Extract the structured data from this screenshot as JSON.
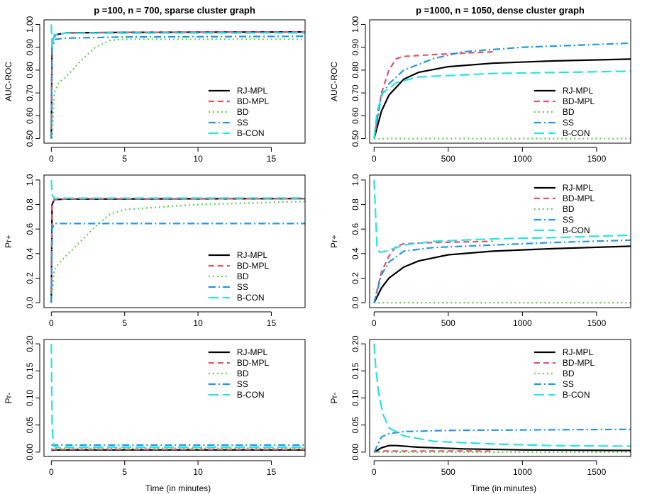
{
  "xlabel": "Time (in minutes)",
  "series_styles": [
    {
      "name": "RJ-MPL",
      "color": "#000000",
      "dash": "none",
      "width": 2.2
    },
    {
      "name": "BD-MPL",
      "color": "#df536b",
      "dash": "8,5",
      "width": 2.2
    },
    {
      "name": "BD",
      "color": "#61d04f",
      "dash": "2,4",
      "width": 2.2
    },
    {
      "name": "SS",
      "color": "#2297e6",
      "dash": "10,4,2,4",
      "width": 2.2
    },
    {
      "name": "B-CON",
      "color": "#28e2e5",
      "dash": "14,6",
      "width": 2.2
    }
  ],
  "chart_data": [
    {
      "type": "line",
      "title": "p =100, n = 700, sparse cluster graph",
      "ylabel": "AUC-ROC",
      "xlim": [
        -0.5,
        17.3
      ],
      "ylim": [
        0.5,
        1.0
      ],
      "xticks": [
        0,
        5,
        10,
        15
      ],
      "yticks": [
        0.5,
        0.6,
        0.7,
        0.8,
        0.9,
        1.0
      ],
      "legend_position": "bottom-right",
      "series": [
        {
          "name": "RJ-MPL",
          "x": [
            0,
            0.05,
            0.3,
            1,
            5,
            17.3
          ],
          "y": [
            0.5,
            0.93,
            0.955,
            0.963,
            0.965,
            0.967
          ]
        },
        {
          "name": "BD-MPL",
          "x": [
            0,
            0.05,
            0.3,
            1,
            5,
            17.3
          ],
          "y": [
            0.5,
            0.92,
            0.955,
            0.962,
            0.965,
            0.967
          ]
        },
        {
          "name": "BD",
          "x": [
            0.05,
            0.2,
            0.5,
            1,
            2,
            3,
            4,
            5,
            17.3
          ],
          "y": [
            0.5,
            0.7,
            0.745,
            0.77,
            0.84,
            0.9,
            0.93,
            0.935,
            0.935
          ]
        },
        {
          "name": "SS",
          "x": [
            0,
            0.05,
            0.3,
            1,
            5,
            17.3
          ],
          "y": [
            0.5,
            0.9,
            0.935,
            0.94,
            0.945,
            0.948
          ]
        },
        {
          "name": "B-CON",
          "x": [
            0,
            0.05,
            0.2,
            1,
            17.3
          ],
          "y": [
            1.0,
            0.9,
            0.955,
            0.962,
            0.963
          ]
        }
      ]
    },
    {
      "type": "line",
      "title": "p =1000, n = 1050, dense cluster graph",
      "ylabel": "AUC-ROC",
      "xlim": [
        -30,
        1730
      ],
      "ylim": [
        0.5,
        1.0
      ],
      "xticks": [
        0,
        500,
        1000,
        1500
      ],
      "yticks": [
        0.5,
        0.6,
        0.7,
        0.8,
        0.9,
        1.0
      ],
      "legend_position": "bottom-right",
      "series": [
        {
          "name": "RJ-MPL",
          "x": [
            0,
            50,
            100,
            200,
            300,
            500,
            800,
            1200,
            1730
          ],
          "y": [
            0.5,
            0.62,
            0.69,
            0.76,
            0.79,
            0.815,
            0.83,
            0.84,
            0.848
          ]
        },
        {
          "name": "BD-MPL",
          "x": [
            0,
            50,
            100,
            150,
            200,
            400,
            800
          ],
          "y": [
            0.5,
            0.7,
            0.8,
            0.85,
            0.86,
            0.868,
            0.88
          ]
        },
        {
          "name": "BD",
          "x": [
            0,
            1730
          ],
          "y": [
            0.5,
            0.5
          ]
        },
        {
          "name": "SS",
          "x": [
            0,
            50,
            100,
            200,
            400,
            600,
            1000,
            1730
          ],
          "y": [
            0.5,
            0.69,
            0.74,
            0.8,
            0.85,
            0.88,
            0.9,
            0.918
          ]
        },
        {
          "name": "B-CON",
          "x": [
            0,
            20,
            60,
            150,
            300,
            800,
            1730
          ],
          "y": [
            0.5,
            0.62,
            0.7,
            0.745,
            0.77,
            0.785,
            0.795
          ]
        }
      ]
    },
    {
      "type": "line",
      "title": "",
      "ylabel": "Pr+",
      "xlim": [
        -0.5,
        17.3
      ],
      "ylim": [
        0,
        1.0
      ],
      "xticks": [
        0,
        5,
        10,
        15
      ],
      "yticks": [
        0.0,
        0.2,
        0.4,
        0.6,
        0.8,
        1.0
      ],
      "legend_position": "bottom-right",
      "series": [
        {
          "name": "RJ-MPL",
          "x": [
            0,
            0.05,
            0.2,
            1,
            17.3
          ],
          "y": [
            0.0,
            0.8,
            0.84,
            0.845,
            0.848
          ]
        },
        {
          "name": "BD-MPL",
          "x": [
            0,
            0.05,
            0.2,
            1,
            17.3
          ],
          "y": [
            0.0,
            0.78,
            0.84,
            0.845,
            0.848
          ]
        },
        {
          "name": "BD",
          "x": [
            0,
            0.2,
            0.5,
            1,
            2,
            3,
            4,
            5,
            10,
            17.3
          ],
          "y": [
            0.0,
            0.27,
            0.32,
            0.38,
            0.5,
            0.62,
            0.72,
            0.76,
            0.8,
            0.825
          ]
        },
        {
          "name": "SS",
          "x": [
            0,
            0.05,
            0.2,
            17.3
          ],
          "y": [
            0.0,
            0.6,
            0.645,
            0.645
          ]
        },
        {
          "name": "B-CON",
          "x": [
            0,
            0.05,
            0.2,
            1,
            17.3
          ],
          "y": [
            1.0,
            0.88,
            0.85,
            0.852,
            0.853
          ]
        }
      ]
    },
    {
      "type": "line",
      "title": "",
      "ylabel": "Pr+",
      "xlim": [
        -30,
        1730
      ],
      "ylim": [
        0,
        1.0
      ],
      "xticks": [
        0,
        500,
        1000,
        1500
      ],
      "yticks": [
        0.0,
        0.2,
        0.4,
        0.6,
        0.8,
        1.0
      ],
      "legend_position": "top-right",
      "series": [
        {
          "name": "RJ-MPL",
          "x": [
            0,
            50,
            100,
            200,
            300,
            500,
            800,
            1200,
            1730
          ],
          "y": [
            0.0,
            0.12,
            0.2,
            0.29,
            0.34,
            0.39,
            0.42,
            0.44,
            0.46
          ]
        },
        {
          "name": "BD-MPL",
          "x": [
            0,
            50,
            100,
            150,
            200,
            400,
            800
          ],
          "y": [
            0.0,
            0.25,
            0.38,
            0.46,
            0.48,
            0.49,
            0.5
          ]
        },
        {
          "name": "BD",
          "x": [
            0,
            1730
          ],
          "y": [
            0.0,
            0.0
          ]
        },
        {
          "name": "SS",
          "x": [
            0,
            50,
            100,
            200,
            400,
            800,
            1200,
            1730
          ],
          "y": [
            0.0,
            0.23,
            0.33,
            0.42,
            0.45,
            0.47,
            0.49,
            0.51
          ]
        },
        {
          "name": "B-CON",
          "x": [
            0,
            20,
            40,
            80,
            200,
            400,
            800,
            1200,
            1730
          ],
          "y": [
            1.0,
            0.45,
            0.41,
            0.42,
            0.47,
            0.5,
            0.52,
            0.53,
            0.55
          ]
        }
      ]
    },
    {
      "type": "line",
      "title": "",
      "ylabel": "Pr-",
      "xlim": [
        -0.5,
        17.3
      ],
      "ylim": [
        0,
        0.2
      ],
      "xticks": [
        0,
        5,
        10,
        15
      ],
      "yticks": [
        0.0,
        0.05,
        0.1,
        0.15,
        0.2
      ],
      "legend_position": "top-right",
      "series": [
        {
          "name": "RJ-MPL",
          "x": [
            0,
            0.2,
            17.3
          ],
          "y": [
            0.003,
            0.004,
            0.004
          ]
        },
        {
          "name": "BD-MPL",
          "x": [
            0,
            0.2,
            17.3
          ],
          "y": [
            0.004,
            0.005,
            0.005
          ]
        },
        {
          "name": "BD",
          "x": [
            0,
            0.2,
            17.3
          ],
          "y": [
            0.006,
            0.007,
            0.007
          ]
        },
        {
          "name": "SS",
          "x": [
            0,
            0.1,
            17.3
          ],
          "y": [
            0.013,
            0.013,
            0.013
          ]
        },
        {
          "name": "B-CON",
          "x": [
            0,
            0.05,
            0.15,
            0.3,
            17.3
          ],
          "y": [
            0.2,
            0.05,
            0.012,
            0.009,
            0.009
          ]
        }
      ]
    },
    {
      "type": "line",
      "title": "",
      "ylabel": "Pr-",
      "xlim": [
        -30,
        1730
      ],
      "ylim": [
        0,
        0.2
      ],
      "xticks": [
        0,
        500,
        1000,
        1500
      ],
      "yticks": [
        0.0,
        0.05,
        0.1,
        0.15,
        0.2
      ],
      "legend_position": "top-right",
      "series": [
        {
          "name": "RJ-MPL",
          "x": [
            0,
            50,
            100,
            150,
            300,
            600,
            1000,
            1730
          ],
          "y": [
            0.0,
            0.008,
            0.012,
            0.012,
            0.009,
            0.006,
            0.004,
            0.003
          ]
        },
        {
          "name": "BD-MPL",
          "x": [
            0,
            50,
            100,
            300,
            800
          ],
          "y": [
            0.0,
            0.002,
            0.002,
            0.002,
            0.002
          ]
        },
        {
          "name": "BD",
          "x": [
            0,
            1730
          ],
          "y": [
            0.0,
            0.0
          ]
        },
        {
          "name": "SS",
          "x": [
            0,
            50,
            100,
            200,
            500,
            1000,
            1730
          ],
          "y": [
            0.0,
            0.028,
            0.034,
            0.038,
            0.04,
            0.041,
            0.042
          ]
        },
        {
          "name": "B-CON",
          "x": [
            0,
            10,
            30,
            60,
            100,
            200,
            400,
            800,
            1200,
            1730
          ],
          "y": [
            0.2,
            0.16,
            0.11,
            0.07,
            0.045,
            0.03,
            0.02,
            0.015,
            0.012,
            0.011
          ]
        }
      ]
    }
  ]
}
